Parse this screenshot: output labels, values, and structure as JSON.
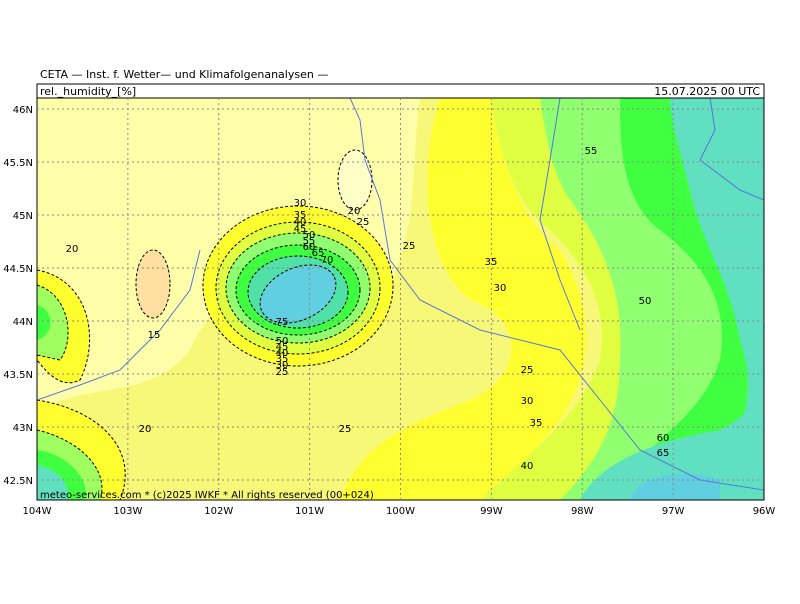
{
  "header": {
    "title": "CETA — Inst. f. Wetter— und Klimafolgenanalysen —",
    "variable": "rel._humidity_[%]",
    "valid_time": "15.07.2025 00 UTC"
  },
  "map": {
    "lat_labels": [
      "46N",
      "45.5N",
      "45N",
      "44.5N",
      "44N",
      "43.5N",
      "43N",
      "42.5N"
    ],
    "lon_labels": [
      "104W",
      "103W",
      "102W",
      "101W",
      "100W",
      "99W",
      "98W",
      "97W",
      "96W"
    ],
    "contour_labels": [
      "30",
      "35",
      "40",
      "45",
      "50",
      "55",
      "60",
      "65",
      "70",
      "75",
      "20",
      "25",
      "20",
      "15",
      "20",
      "25",
      "35",
      "30",
      "25",
      "30",
      "35",
      "40",
      "25",
      "55",
      "50",
      "60",
      "65",
      "50",
      "45",
      "40",
      "35",
      "30",
      "25"
    ],
    "footer": "meteo-services.com * (c)2025 IWKF * All rights reserved (00+024)"
  }
}
